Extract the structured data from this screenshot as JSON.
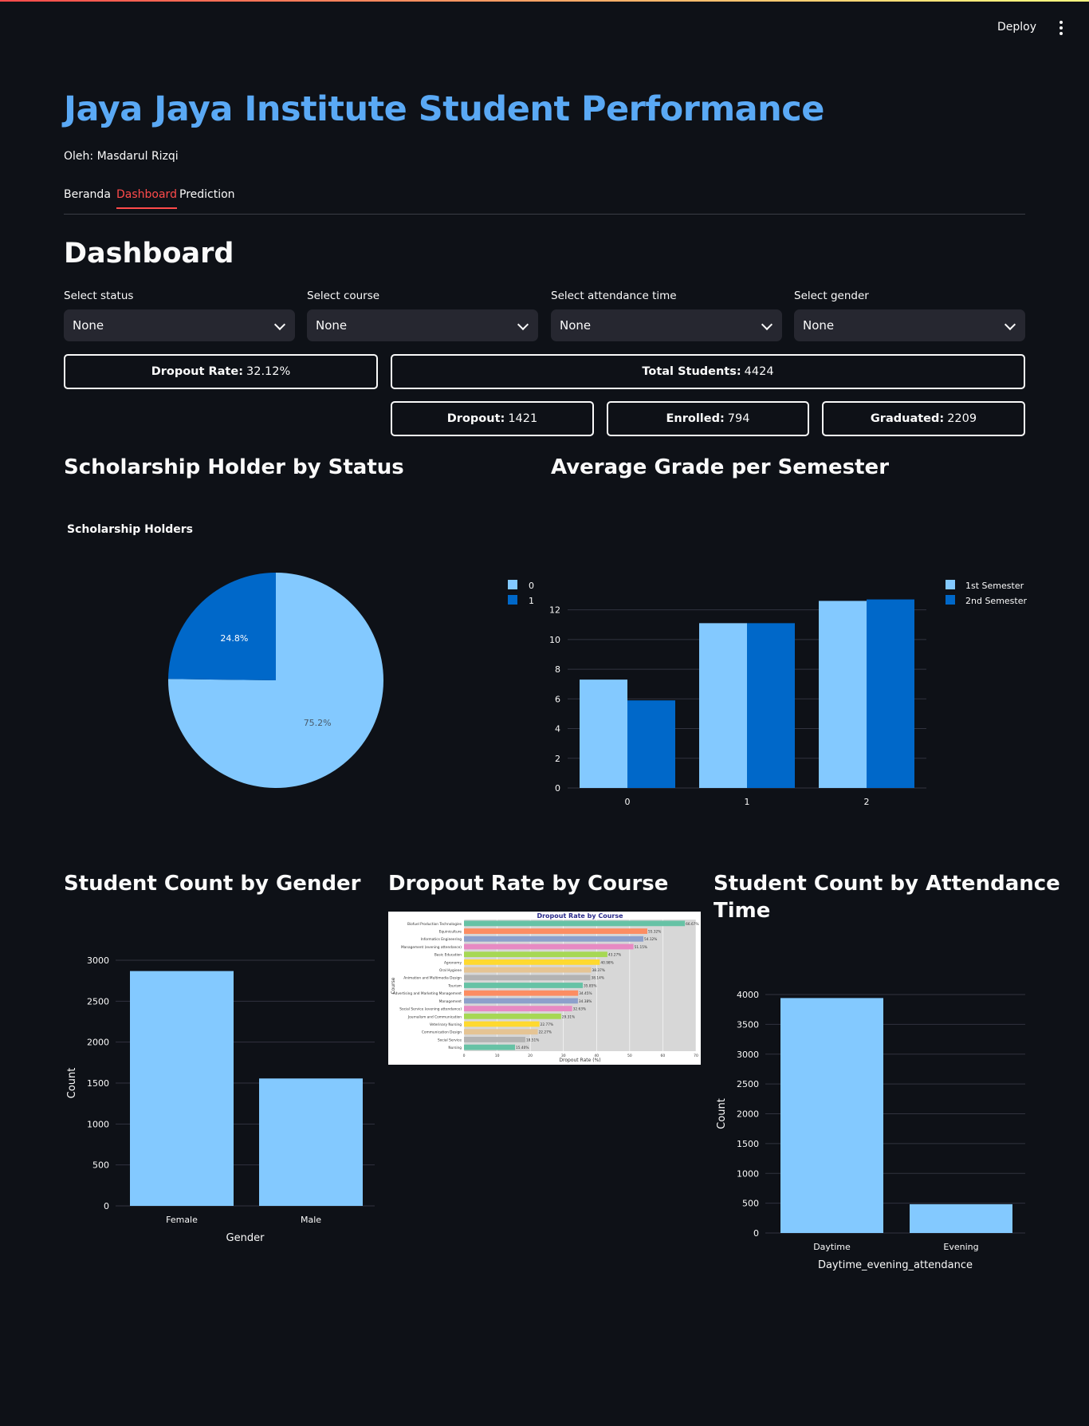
{
  "header": {
    "deploy_label": "Deploy",
    "menu_icon": "more-vertical-icon"
  },
  "title": "Jaya Jaya Institute Student Performance",
  "byline": "Oleh: Masdarul Rizqi",
  "tabs": [
    {
      "label": "Beranda",
      "active": false
    },
    {
      "label": "Dashboard",
      "active": true
    },
    {
      "label": "Prediction",
      "active": false
    }
  ],
  "section_title": "Dashboard",
  "filters": [
    {
      "label": "Select status",
      "value": "None"
    },
    {
      "label": "Select course",
      "value": "None"
    },
    {
      "label": "Select attendance time",
      "value": "None"
    },
    {
      "label": "Select gender",
      "value": "None"
    }
  ],
  "metrics": {
    "dropout_rate": {
      "label": "Dropout Rate:",
      "value": "32.12%"
    },
    "total": {
      "label": "Total Students:",
      "value": "4424"
    },
    "dropout": {
      "label": "Dropout:",
      "value": "1421"
    },
    "enrolled": {
      "label": "Enrolled:",
      "value": "794"
    },
    "graduated": {
      "label": "Graduated: ",
      "value": "2209"
    }
  },
  "chart_titles": {
    "scholarship": "Scholarship Holder by Status",
    "grade": "Average Grade per Semester",
    "gender": "Student Count by Gender",
    "dropout_course": "Dropout Rate by Course",
    "attendance_line1": "Student Count by Attendance",
    "attendance_line2": "Time"
  },
  "colors": {
    "light_blue": "#83c9ff",
    "dark_blue": "#0068c9",
    "accent": "#ff4b4b",
    "title_blue": "#5aa9f5"
  },
  "chart_data": [
    {
      "id": "scholarship",
      "type": "pie",
      "title": "Scholarship Holders",
      "labels": [
        "0",
        "1"
      ],
      "values": [
        75.2,
        24.8
      ],
      "value_labels": [
        "75.2%",
        "24.8%"
      ],
      "legend_position": "top-right"
    },
    {
      "id": "grade",
      "type": "bar",
      "categories": [
        "0",
        "1",
        "2"
      ],
      "series": [
        {
          "name": "1st Semester",
          "values": [
            7.3,
            11.1,
            12.6
          ]
        },
        {
          "name": "2nd Semester",
          "values": [
            5.9,
            11.1,
            12.7
          ]
        }
      ],
      "ylim": [
        0,
        13
      ],
      "yticks": [
        0,
        2,
        4,
        6,
        8,
        10,
        12
      ],
      "grid": true,
      "legend_position": "top-right"
    },
    {
      "id": "gender",
      "type": "bar",
      "categories": [
        "Female",
        "Male"
      ],
      "values": [
        2868,
        1556
      ],
      "xlabel": "Gender",
      "ylabel": "Count",
      "ylim": [
        0,
        3000
      ],
      "yticks": [
        0,
        500,
        1000,
        1500,
        2000,
        2500,
        3000
      ],
      "grid": true
    },
    {
      "id": "dropout_course",
      "type": "bar",
      "orientation": "horizontal",
      "title": "Dropout Rate by Course",
      "xlabel": "Dropout Rate (%)",
      "ylabel": "Course",
      "xticks": [
        0,
        10,
        20,
        30,
        40,
        50,
        60,
        70
      ],
      "xlim": [
        0,
        70
      ],
      "categories": [
        "Biofuel Production Technologies",
        "Equiniculture",
        "Informatics Engineering",
        "Management (evening attendance)",
        "Basic Education",
        "Agronomy",
        "Oral Hygiene",
        "Animation and Multimedia Design",
        "Tourism",
        "Advertising and Marketing Management",
        "Management",
        "Social Service (evening attendance)",
        "Journalism and Communication",
        "Veterinary Nursing",
        "Communication Design",
        "Social Service",
        "Nursing"
      ],
      "values": [
        66.67,
        55.32,
        54.12,
        51.15,
        43.27,
        40.98,
        38.37,
        38.14,
        35.85,
        34.45,
        34.38,
        32.63,
        29.31,
        22.77,
        22.27,
        18.51,
        15.4
      ],
      "value_labels": [
        "66.67%",
        "55.32%",
        "54.12%",
        "51.15%",
        "43.27%",
        "40.98%",
        "38.37%",
        "38.14%",
        "35.85%",
        "34.45%",
        "34.38%",
        "32.63%",
        "29.31%",
        "22.77%",
        "22.27%",
        "18.51%",
        "15.40%"
      ],
      "colors": [
        "#66c2a5",
        "#fc8d62",
        "#8da0cb",
        "#e78ac3",
        "#a6d854",
        "#ffd92f",
        "#e5c494",
        "#b3b3b3",
        "#66c2a5",
        "#fc8d62",
        "#8da0cb",
        "#e78ac3",
        "#a6d854",
        "#ffd92f",
        "#e5c494",
        "#b3b3b3",
        "#66c2a5"
      ]
    },
    {
      "id": "attendance",
      "type": "bar",
      "categories": [
        "Daytime",
        "Evening"
      ],
      "values": [
        3941,
        483
      ],
      "xlabel": "Daytime_evening_attendance",
      "ylabel": "Count",
      "ylim": [
        0,
        4000
      ],
      "yticks": [
        0,
        500,
        1000,
        1500,
        2000,
        2500,
        3000,
        3500,
        4000
      ],
      "grid": true
    }
  ]
}
